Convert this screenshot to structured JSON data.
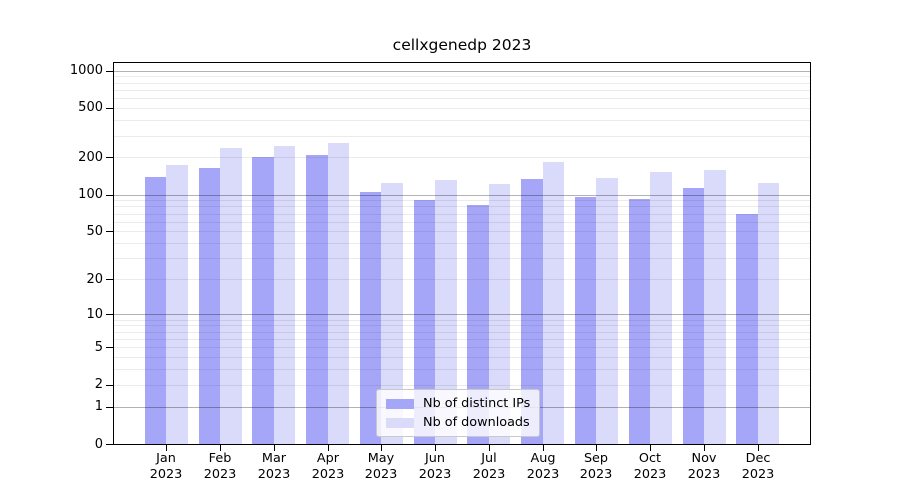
{
  "title": "cellxgenedp 2023",
  "chart_data": {
    "type": "bar",
    "title": "cellxgenedp 2023",
    "year": "2023",
    "categories": [
      "Jan",
      "Feb",
      "Mar",
      "Apr",
      "May",
      "Jun",
      "Jul",
      "Aug",
      "Sep",
      "Oct",
      "Nov",
      "Dec"
    ],
    "series": [
      {
        "name": "Nb of distinct IPs",
        "color": "#a6a6f8",
        "values": [
          140,
          164,
          203,
          208,
          104,
          91,
          82,
          133,
          96,
          92,
          113,
          69
        ]
      },
      {
        "name": "Nb of downloads",
        "color": "#dadafa",
        "values": [
          173,
          236,
          246,
          261,
          123,
          131,
          122,
          182,
          136,
          151,
          158,
          123
        ]
      }
    ],
    "y_scale": "log1p",
    "y_ticks": [
      1000,
      500,
      200,
      100,
      50,
      20,
      10,
      5,
      2,
      1,
      0
    ],
    "y_major_gridlines": [
      1,
      10,
      100,
      1000
    ],
    "ylim": [
      0,
      1150
    ],
    "xlabel": "",
    "ylabel": "",
    "grid": true,
    "legend_position": "lower center"
  },
  "palette": {
    "distinct_ips": "#a6a6f8",
    "downloads": "#dadafa",
    "major_grid": "rgba(0,0,0,0.30)",
    "minor_grid": "rgba(0,0,0,0.08)",
    "axis": "#000000",
    "background": "#ffffff"
  }
}
